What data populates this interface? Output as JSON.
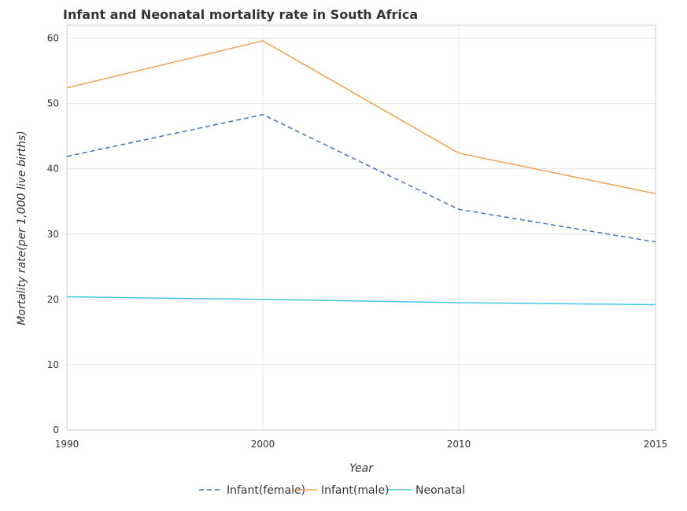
{
  "chart_data": {
    "type": "line",
    "title": "Infant and Neonatal mortality rate in South Africa",
    "xlabel": "Year",
    "ylabel": "Mortality rate(per 1,000 live births)",
    "categories": [
      "1990",
      "2000",
      "2010",
      "2015"
    ],
    "y_ticks": [
      "0",
      "10",
      "20",
      "30",
      "40",
      "50",
      "60"
    ],
    "ylim": [
      0,
      62
    ],
    "grid": true,
    "legend_position": "bottom",
    "series": [
      {
        "name": "Infant(female)",
        "color": "#4a6fae",
        "dash": "6,4",
        "values": [
          41.9,
          48.3,
          33.8,
          28.8
        ]
      },
      {
        "name": "Infant(male)",
        "color": "#f0a050",
        "dash": "",
        "values": [
          52.4,
          59.6,
          42.4,
          36.2
        ]
      },
      {
        "name": "Neonatal",
        "color": "#45c7e6",
        "dash": "",
        "values": [
          20.4,
          20.0,
          19.5,
          19.2
        ]
      }
    ]
  }
}
